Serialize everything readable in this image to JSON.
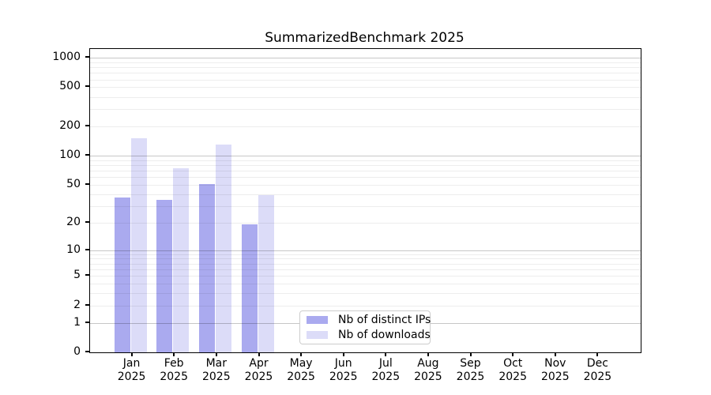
{
  "chart_data": {
    "type": "bar",
    "title": "SummarizedBenchmark 2025",
    "xlabel": "",
    "ylabel": "",
    "yscale": "log1p",
    "ylim": [
      0,
      1228
    ],
    "grid": "horizontal-only",
    "legend_position": "bottom-center-inside",
    "ytick_values": [
      0,
      1,
      2,
      5,
      10,
      20,
      50,
      100,
      200,
      500,
      1000
    ],
    "ytick_labels": [
      "0",
      "1",
      "2",
      "5",
      "10",
      "20",
      "50",
      "100",
      "200",
      "500",
      "1000"
    ],
    "major_grid_values": [
      1,
      10,
      100,
      1000
    ],
    "categories": [
      {
        "month": "Jan",
        "year": "2025"
      },
      {
        "month": "Feb",
        "year": "2025"
      },
      {
        "month": "Mar",
        "year": "2025"
      },
      {
        "month": "Apr",
        "year": "2025"
      },
      {
        "month": "May",
        "year": "2025"
      },
      {
        "month": "Jun",
        "year": "2025"
      },
      {
        "month": "Jul",
        "year": "2025"
      },
      {
        "month": "Aug",
        "year": "2025"
      },
      {
        "month": "Sep",
        "year": "2025"
      },
      {
        "month": "Oct",
        "year": "2025"
      },
      {
        "month": "Nov",
        "year": "2025"
      },
      {
        "month": "Dec",
        "year": "2025"
      }
    ],
    "series": [
      {
        "name": "Nb of distinct IPs",
        "color": "#aaaaef",
        "values": [
          37,
          35,
          51,
          19,
          0,
          0,
          0,
          0,
          0,
          0,
          0,
          0
        ]
      },
      {
        "name": "Nb of downloads",
        "color": "#dcdcf8",
        "values": [
          152,
          74,
          130,
          39,
          0,
          0,
          0,
          0,
          0,
          0,
          0,
          0
        ]
      }
    ]
  },
  "colors": {
    "spine": "#000000",
    "major_grid": "rgba(0,0,0,0.22)",
    "minor_grid": "rgba(0,0,0,0.07)",
    "background": "#ffffff"
  }
}
